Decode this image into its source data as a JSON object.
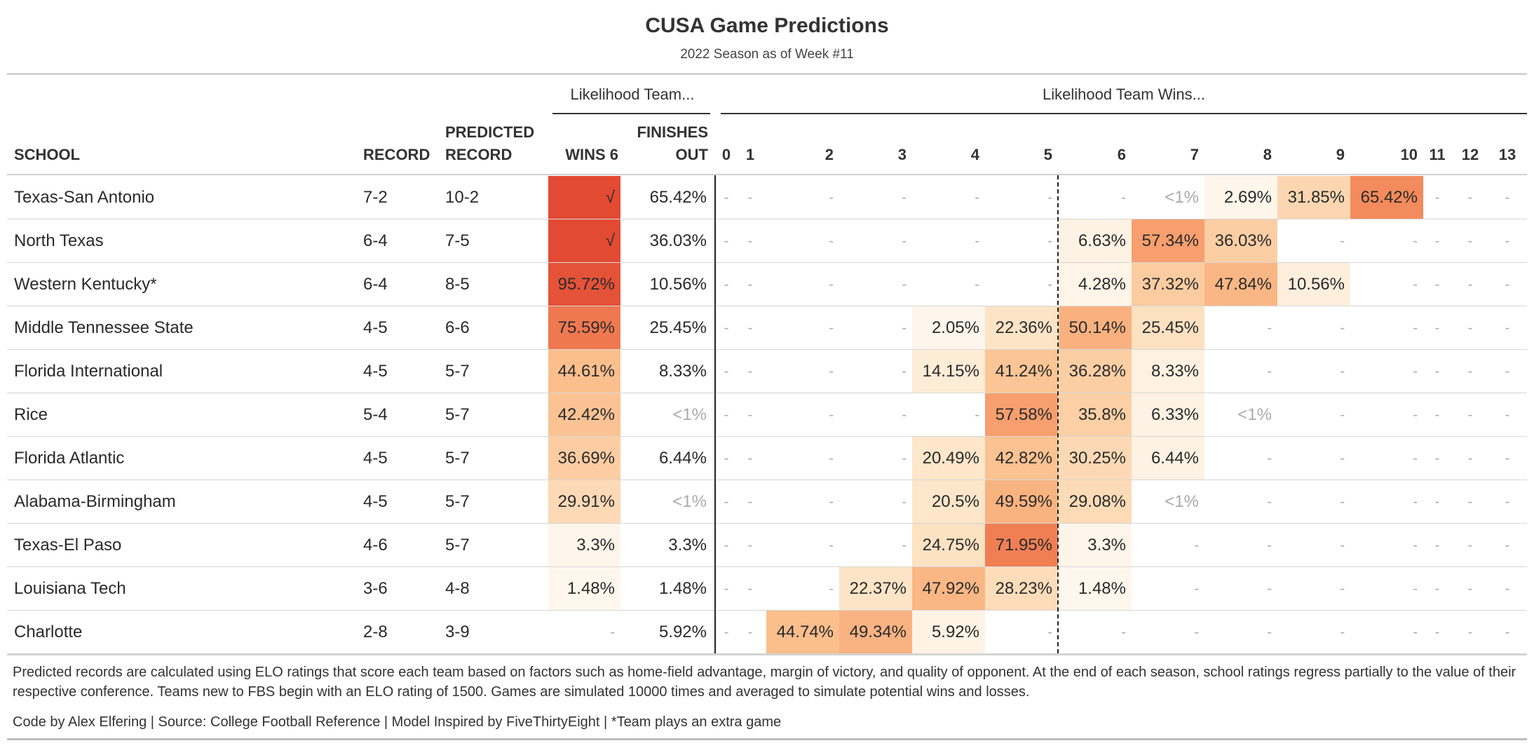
{
  "title": "CUSA Game Predictions",
  "subtitle": "2022 Season as of Week #11",
  "spanners": {
    "finish": "Likelihood Team...",
    "wins": "Likelihood Team Wins..."
  },
  "columns": {
    "school": "SCHOOL",
    "record": "RECORD",
    "predicted_line1": "PREDICTED",
    "predicted_line2": "RECORD",
    "wins6": "WINS 6",
    "finishes_line1": "FINISHES",
    "finishes_line2": "OUT",
    "win_counts": [
      "0",
      "1",
      "2",
      "3",
      "4",
      "5",
      "6",
      "7",
      "8",
      "9",
      "10",
      "11",
      "12",
      "13"
    ]
  },
  "colors": {
    "heat_low": "#fef6ec",
    "heat_mid1": "#fde2c2",
    "heat_mid2": "#fbbf8d",
    "heat_mid3": "#f5935f",
    "heat_high": "#e24a33",
    "dash": "#aaaaaa"
  },
  "chart_data": {
    "type": "table",
    "title": "CUSA Game Predictions",
    "subtitle": "2022 Season as of Week #11",
    "rows": [
      {
        "school": "Texas-San Antonio",
        "record": "7-2",
        "predicted": "10-2",
        "wins6": "√",
        "wins6_value": 100,
        "finishes": "65.42%",
        "wins": [
          "-",
          "-",
          "-",
          "-",
          "-",
          "-",
          "-",
          "<1%",
          "2.69%",
          "31.85%",
          "65.42%",
          "-",
          "-",
          "-"
        ]
      },
      {
        "school": "North Texas",
        "record": "6-4",
        "predicted": "7-5",
        "wins6": "√",
        "wins6_value": 100,
        "finishes": "36.03%",
        "wins": [
          "-",
          "-",
          "-",
          "-",
          "-",
          "-",
          "6.63%",
          "57.34%",
          "36.03%",
          "-",
          "-",
          "-",
          "-",
          "-"
        ]
      },
      {
        "school": "Western Kentucky*",
        "record": "6-4",
        "predicted": "8-5",
        "wins6": "95.72%",
        "wins6_value": 95.72,
        "finishes": "10.56%",
        "wins": [
          "-",
          "-",
          "-",
          "-",
          "-",
          "-",
          "4.28%",
          "37.32%",
          "47.84%",
          "10.56%",
          "-",
          "-",
          "-",
          "-"
        ]
      },
      {
        "school": "Middle Tennessee State",
        "record": "4-5",
        "predicted": "6-6",
        "wins6": "75.59%",
        "wins6_value": 75.59,
        "finishes": "25.45%",
        "wins": [
          "-",
          "-",
          "-",
          "-",
          "2.05%",
          "22.36%",
          "50.14%",
          "25.45%",
          "-",
          "-",
          "-",
          "-",
          "-",
          "-"
        ]
      },
      {
        "school": "Florida International",
        "record": "4-5",
        "predicted": "5-7",
        "wins6": "44.61%",
        "wins6_value": 44.61,
        "finishes": "8.33%",
        "wins": [
          "-",
          "-",
          "-",
          "-",
          "14.15%",
          "41.24%",
          "36.28%",
          "8.33%",
          "-",
          "-",
          "-",
          "-",
          "-",
          "-"
        ]
      },
      {
        "school": "Rice",
        "record": "5-4",
        "predicted": "5-7",
        "wins6": "42.42%",
        "wins6_value": 42.42,
        "finishes": "<1%",
        "wins": [
          "-",
          "-",
          "-",
          "-",
          "-",
          "57.58%",
          "35.8%",
          "6.33%",
          "<1%",
          "-",
          "-",
          "-",
          "-",
          "-"
        ]
      },
      {
        "school": "Florida Atlantic",
        "record": "4-5",
        "predicted": "5-7",
        "wins6": "36.69%",
        "wins6_value": 36.69,
        "finishes": "6.44%",
        "wins": [
          "-",
          "-",
          "-",
          "-",
          "20.49%",
          "42.82%",
          "30.25%",
          "6.44%",
          "-",
          "-",
          "-",
          "-",
          "-",
          "-"
        ]
      },
      {
        "school": "Alabama-Birmingham",
        "record": "4-5",
        "predicted": "5-7",
        "wins6": "29.91%",
        "wins6_value": 29.91,
        "finishes": "<1%",
        "wins": [
          "-",
          "-",
          "-",
          "-",
          "20.5%",
          "49.59%",
          "29.08%",
          "<1%",
          "-",
          "-",
          "-",
          "-",
          "-",
          "-"
        ]
      },
      {
        "school": "Texas-El Paso",
        "record": "4-6",
        "predicted": "5-7",
        "wins6": "3.3%",
        "wins6_value": 3.3,
        "finishes": "3.3%",
        "wins": [
          "-",
          "-",
          "-",
          "-",
          "24.75%",
          "71.95%",
          "3.3%",
          "-",
          "-",
          "-",
          "-",
          "-",
          "-",
          "-"
        ]
      },
      {
        "school": "Louisiana Tech",
        "record": "3-6",
        "predicted": "4-8",
        "wins6": "1.48%",
        "wins6_value": 1.48,
        "finishes": "1.48%",
        "wins": [
          "-",
          "-",
          "-",
          "22.37%",
          "47.92%",
          "28.23%",
          "1.48%",
          "-",
          "-",
          "-",
          "-",
          "-",
          "-",
          "-"
        ]
      },
      {
        "school": "Charlotte",
        "record": "2-8",
        "predicted": "3-9",
        "wins6": "-",
        "wins6_value": 0,
        "finishes": "5.92%",
        "wins": [
          "-",
          "-",
          "44.74%",
          "49.34%",
          "5.92%",
          "-",
          "-",
          "-",
          "-",
          "-",
          "-",
          "-",
          "-",
          "-"
        ]
      }
    ]
  },
  "footnote": "Predicted records are calculated using ELO ratings that score each team based on factors such as home-field advantage, margin of victory, and quality of opponent. At the end of each season, school ratings regress partially to the value of their respective conference. Teams new to FBS begin with an ELO rating of 1500. Games are simulated 10000 times and averaged to simulate potential wins and losses.",
  "credits": "Code by Alex Elfering | Source: College Football Reference | Model Inspired by FiveThirtyEight | *Team plays an extra game"
}
